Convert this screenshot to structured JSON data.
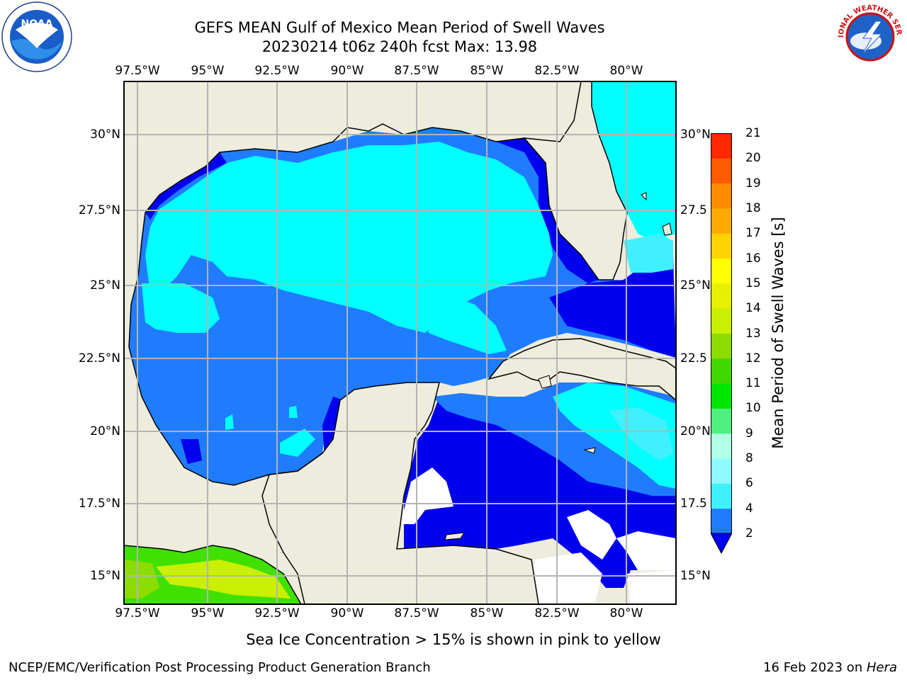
{
  "title_line1": "GEFS MEAN Gulf of Mexico Mean Period of Swell Waves",
  "title_line2": "20230214 t06z 240h fcst   Max: 13.98",
  "logos": {
    "left": "noaa-logo",
    "right": "nws-logo",
    "left_text": "NOAA",
    "right_text": "NATIONAL WEATHER SERVICE"
  },
  "lon_labels": [
    "97.5°W",
    "95°W",
    "92.5°W",
    "90°W",
    "87.5°W",
    "85°W",
    "82.5°W",
    "80°W"
  ],
  "lat_labels_left": [
    "30°N",
    "27.5°N",
    "25°N",
    "22.5°N",
    "20°N",
    "17.5°N",
    "15°N"
  ],
  "lat_labels_right": [
    "30°N",
    "27.5",
    "25°N",
    "22.5",
    "20°N",
    "17.5",
    "15°N"
  ],
  "colorbar": {
    "label": "Mean Period of Swell Waves [s]",
    "ticks": [
      "2",
      "4",
      "6",
      "8",
      "9",
      "10",
      "11",
      "12",
      "13",
      "14",
      "15",
      "16",
      "17",
      "18",
      "19",
      "20",
      "21"
    ],
    "colors": [
      "#1f7cff",
      "#00e6ff",
      "#40f0ff",
      "#8cfaff",
      "#b0ffe6",
      "#50f080",
      "#00e600",
      "#40d800",
      "#8cdc00",
      "#c8f000",
      "#e6f000",
      "#ffff00",
      "#ffd200",
      "#ffaa00",
      "#ff8c00",
      "#ff5a00",
      "#ff2800",
      "#ff0000"
    ],
    "extend_color": "#0000ee"
  },
  "map_colors": {
    "land": "#eeecdc",
    "period_2_4": "#1f7cff",
    "period_lt_2": "#0000ee",
    "period_4_6": "#00ffff",
    "period_6_8": "#40f0ff",
    "green_10_12": "#40e000",
    "yellowgreen_12_14": "#c8f000"
  },
  "footnote": "Sea Ice Concentration > 15% is shown in pink to yellow",
  "credit": "NCEP/EMC/Verification Post Processing Product Generation Branch",
  "stamp_date": "16 Feb 2023 on ",
  "stamp_machine": "Hera"
}
